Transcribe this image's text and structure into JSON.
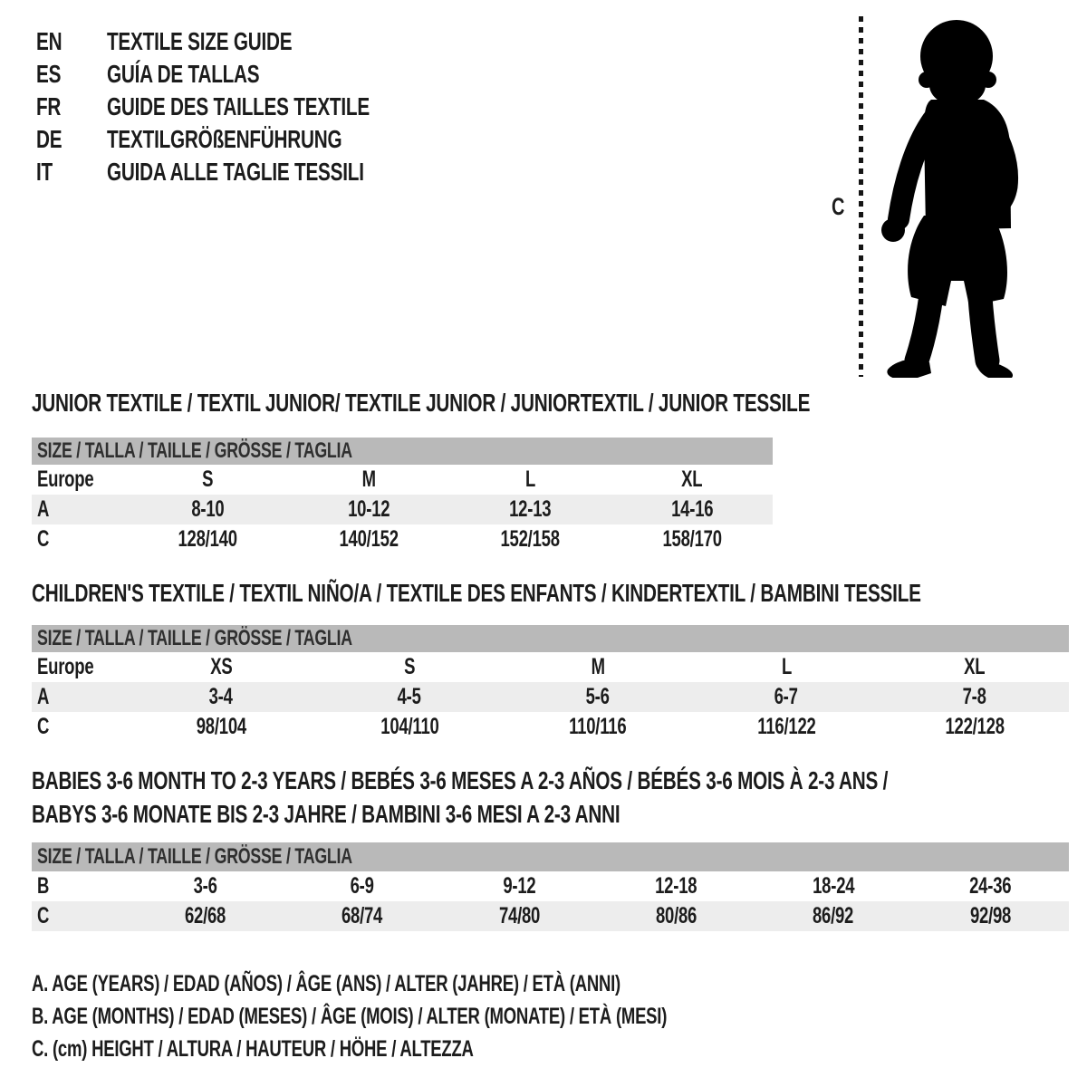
{
  "colors": {
    "size_bar_bg": "#b9b9b9",
    "shaded_row_bg": "#ededed",
    "text": "#1c1c1c",
    "silhouette": "#000000"
  },
  "language_header": {
    "items": [
      {
        "code": "EN",
        "title": "TEXTILE SIZE GUIDE"
      },
      {
        "code": "ES",
        "title": "GUÍA DE TALLAS"
      },
      {
        "code": "FR",
        "title": "GUIDE DES TAILLES TEXTILE"
      },
      {
        "code": "DE",
        "title": "TEXTILGRÖßENFÜHRUNG"
      },
      {
        "code": "IT",
        "title": "GUIDA ALLE TAGLIE TESSILI"
      }
    ]
  },
  "figure": {
    "label": "C",
    "description": "toddler silhouette with dashed height-measurement line"
  },
  "sections": [
    {
      "id": "junior",
      "title_lines": [
        "JUNIOR TEXTILE / TEXTIL JUNIOR/ TEXTILE JUNIOR / JUNIORTEXTIL / JUNIOR TESSILE"
      ],
      "size_header": "SIZE / TALLA / TAILLE / GRÖSSE / TAGLIA",
      "rows": [
        {
          "label": "Europe",
          "values": [
            "S",
            "M",
            "L",
            "XL"
          ],
          "shaded": false
        },
        {
          "label": "A",
          "values": [
            "8-10",
            "10-12",
            "12-13",
            "14-16"
          ],
          "shaded": true
        },
        {
          "label": "C",
          "values": [
            "128/140",
            "140/152",
            "152/158",
            "158/170"
          ],
          "shaded": false
        }
      ]
    },
    {
      "id": "children",
      "title_lines": [
        "CHILDREN'S TEXTILE / TEXTIL NIÑO/A / TEXTILE DES ENFANTS / KINDERTEXTIL / BAMBINI TESSILE"
      ],
      "size_header": "SIZE / TALLA / TAILLE / GRÖSSE / TAGLIA",
      "rows": [
        {
          "label": "Europe",
          "values": [
            "XS",
            "S",
            "M",
            "L",
            "XL"
          ],
          "shaded": false
        },
        {
          "label": "A",
          "values": [
            "3-4",
            "4-5",
            "5-6",
            "6-7",
            "7-8"
          ],
          "shaded": true
        },
        {
          "label": "C",
          "values": [
            "98/104",
            "104/110",
            "110/116",
            "116/122",
            "122/128"
          ],
          "shaded": false
        }
      ]
    },
    {
      "id": "babies",
      "title_lines": [
        "BABIES 3-6 MONTH TO 2-3 YEARS / BEBÉS 3-6 MESES A 2-3 AÑOS / BÉBÉS 3-6 MOIS À 2-3 ANS /",
        "BABYS 3-6 MONATE BIS 2-3 JAHRE / BAMBINI 3-6 MESI A 2-3 ANNI"
      ],
      "size_header": "SIZE / TALLA / TAILLE / GRÖSSE / TAGLIA",
      "rows": [
        {
          "label": "B",
          "values": [
            "3-6",
            "6-9",
            "9-12",
            "12-18",
            "18-24",
            "24-36"
          ],
          "shaded": false
        },
        {
          "label": "C",
          "values": [
            "62/68",
            "68/74",
            "74/80",
            "80/86",
            "86/92",
            "92/98"
          ],
          "shaded": true
        }
      ]
    }
  ],
  "legend": {
    "lines": [
      "A. AGE (YEARS) / EDAD (AÑOS) / ÂGE (ANS) / ALTER (JAHRE) / ETÀ (ANNI)",
      "B. AGE (MONTHS) / EDAD (MESES) / ÂGE (MOIS) / ALTER (MONATE) / ETÀ (MESI)",
      "C. (cm) HEIGHT / ALTURA / HAUTEUR / HÖHE / ALTEZZA"
    ]
  }
}
